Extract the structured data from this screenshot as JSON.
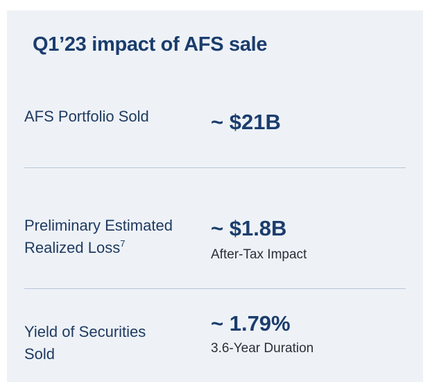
{
  "title": "Q1’23 impact of AFS sale",
  "rows": [
    {
      "label": [
        "AFS Portfolio Sold"
      ],
      "value": "~ $21B"
    },
    {
      "label": [
        "Preliminary Estimated",
        "Realized Loss"
      ],
      "footnote": "7",
      "value": "~ $1.8B",
      "note": "After-Tax Impact"
    },
    {
      "label": [
        "Yield of Securities",
        "Sold"
      ],
      "value": "~ 1.79%",
      "note": "3.6-Year Duration"
    }
  ]
}
